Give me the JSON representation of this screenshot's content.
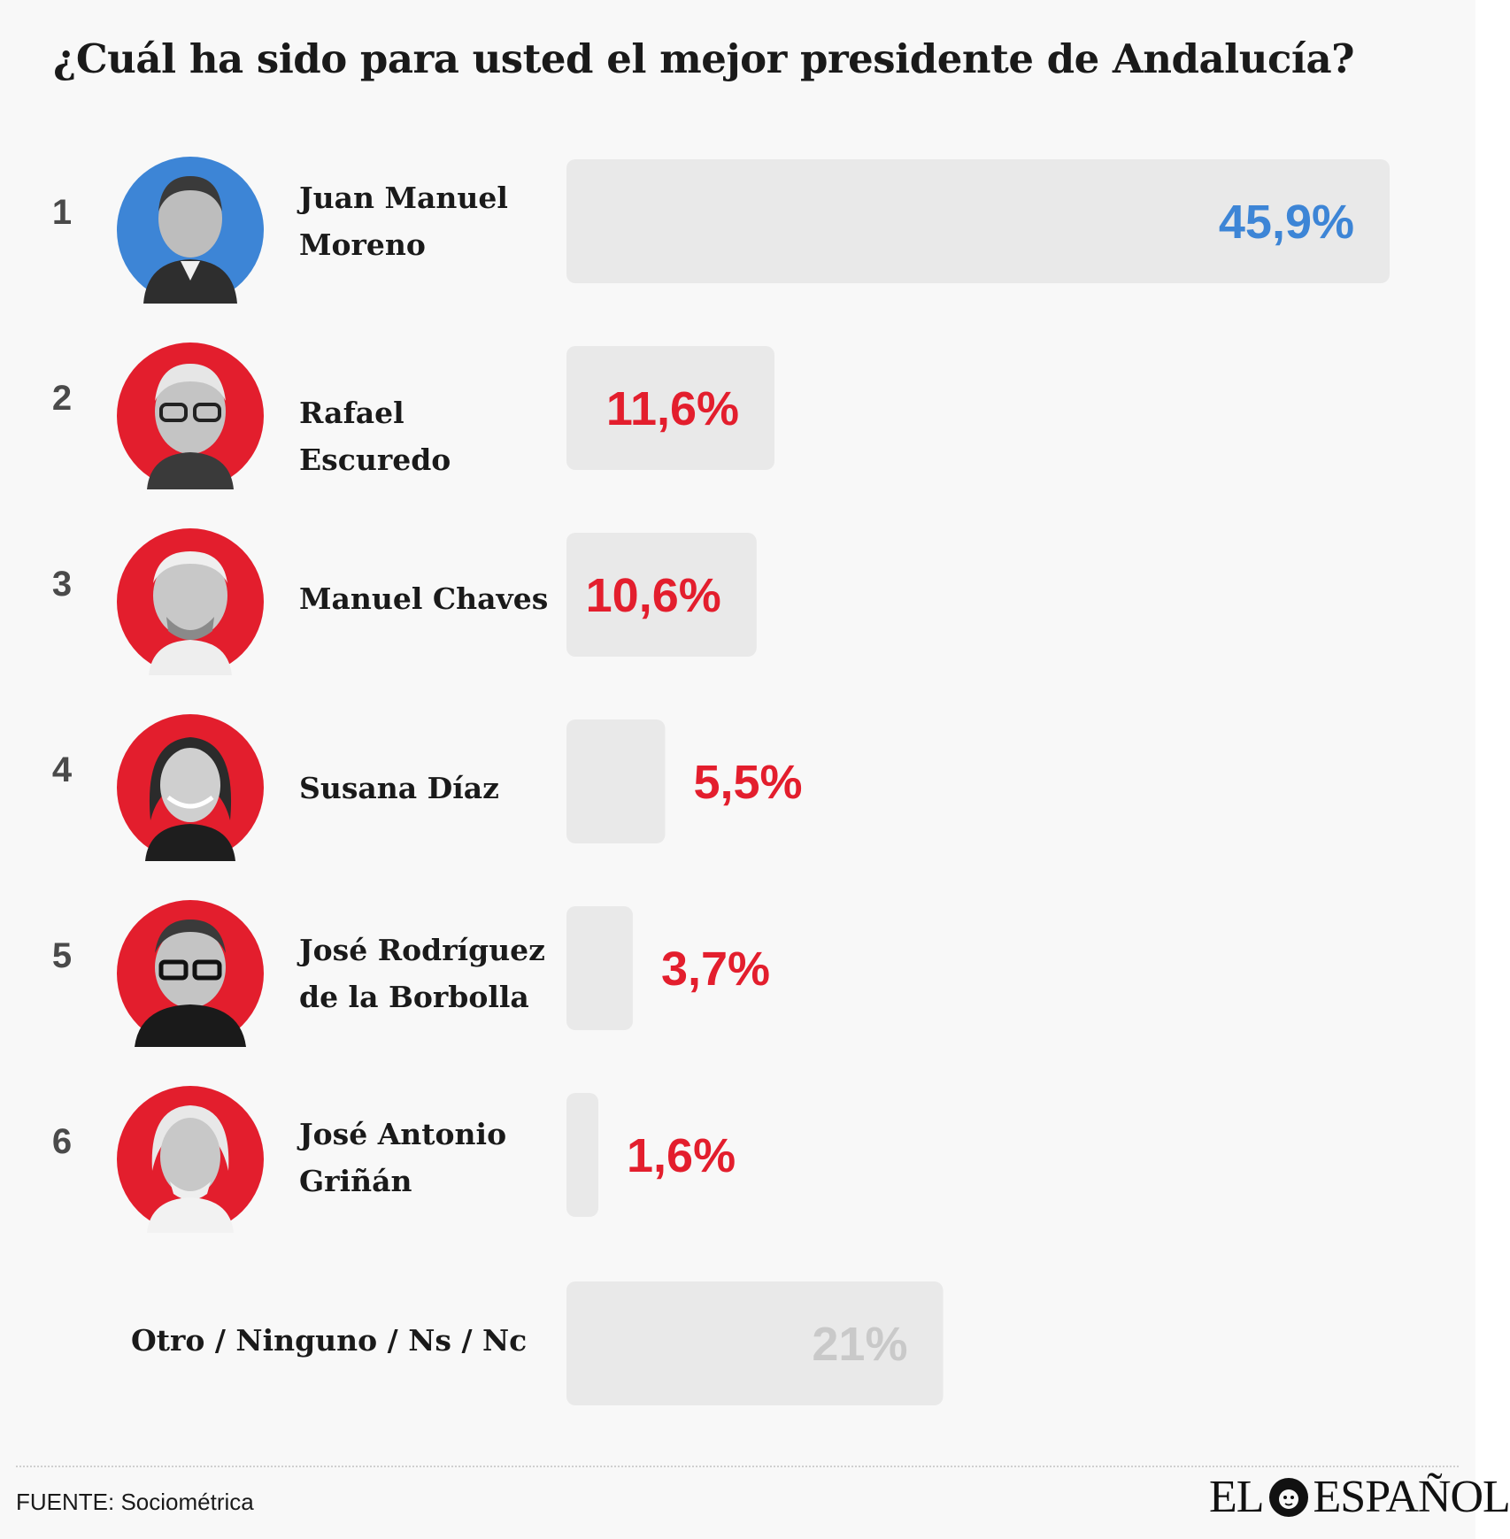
{
  "chart_data": {
    "type": "bar",
    "orientation": "horizontal",
    "title": "¿Cuál ha sido para usted el mejor presidente de Andalucía?",
    "xlim": [
      0,
      45.9
    ],
    "items": [
      {
        "rank": "1",
        "name": "Juan Manuel Moreno",
        "value": 45.9,
        "label": "45,9%",
        "color": "#3d85d6"
      },
      {
        "rank": "2",
        "name": "Rafael Escuredo",
        "value": 11.6,
        "label": "11,6%",
        "color": "#e31e2d"
      },
      {
        "rank": "3",
        "name": "Manuel Chaves",
        "value": 10.6,
        "label": "10,6%",
        "color": "#e31e2d"
      },
      {
        "rank": "4",
        "name": "Susana Díaz",
        "value": 5.5,
        "label": "5,5%",
        "color": "#e31e2d"
      },
      {
        "rank": "5",
        "name": "José Rodríguez de la Borbolla",
        "value": 3.7,
        "label": "3,7%",
        "color": "#e31e2d"
      },
      {
        "rank": "6",
        "name": "José Antonio Griñán",
        "value": 1.6,
        "label": "1,6%",
        "color": "#e31e2d"
      },
      {
        "rank": "",
        "name": "Otro / Ninguno / Ns / Nc",
        "value": 21,
        "label": "21%",
        "color": "#c9c9c9"
      }
    ]
  },
  "footer": {
    "source": "FUENTE: Sociométrica",
    "logo_left": "EL",
    "logo_right": "ESPAÑOL"
  },
  "avatar_icon": "person-portrait-icon"
}
